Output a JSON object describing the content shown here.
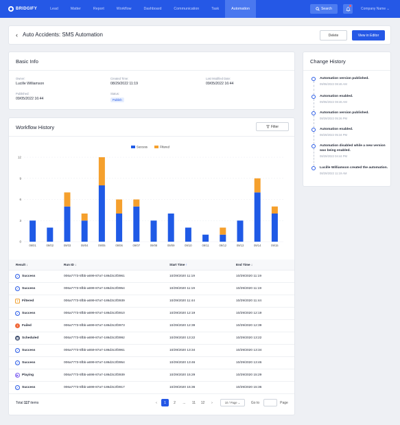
{
  "nav": {
    "logo": "BRIDGIFY",
    "items": [
      "Lead",
      "Matter",
      "Report",
      "Workflow",
      "Dashboard",
      "Communication",
      "Task",
      "Automation"
    ],
    "active": "Automation",
    "search_label": "Search",
    "company_label": "Company Name"
  },
  "header": {
    "title": "Auto Accidents: SMS Automation",
    "delete_label": "Delete",
    "edit_label": "View in Editor"
  },
  "basic_info": {
    "title": "Basic Info",
    "owner_label": "Owner:",
    "owner": "Lucille Williamson",
    "created_label": "Created Time:",
    "created": "08/29/2022 11:19",
    "modified_label": "Last Modified Date:",
    "modified": "09/05/2022 16:44",
    "published_label": "Published:",
    "published": "09/05/2022 16:44",
    "status_label": "Status:",
    "status": "Publish"
  },
  "workflow": {
    "title": "Workflow History",
    "filter_label": "Filter",
    "columns": [
      "Result",
      "Run ID",
      "Start Time",
      "End Time"
    ],
    "rows": [
      {
        "result": "Success",
        "run_id": "006a7773-5fbb-a699-87a7-186d3c3f3961",
        "start": "10/29/2020 11:19",
        "end": "10/29/2020 11:19"
      },
      {
        "result": "Success",
        "run_id": "006a7773-5fbb-a699-87a7-186d3c3f3954",
        "start": "10/29/2020 11:19",
        "end": "10/29/2020 11:19"
      },
      {
        "result": "Filtered",
        "run_id": "006a7773-5fbb-a699-87a7-186d3c3f3939",
        "start": "10/29/2020 11:44",
        "end": "10/29/2020 11:44"
      },
      {
        "result": "Success",
        "run_id": "006a7773-5fbb-a699-87a7-186d3c3f3910",
        "start": "10/29/2020 12:19",
        "end": "10/29/2020 12:19"
      },
      {
        "result": "Failed",
        "run_id": "006a7773-5fbb-a699-87a7-186d3c3f3973",
        "start": "10/29/2020 12:39",
        "end": "10/29/2020 12:39"
      },
      {
        "result": "Scheduled",
        "run_id": "006a7773-5fbb-a699-87a7-186d3c3f3992",
        "start": "10/29/2020 13:22",
        "end": "10/29/2020 13:22"
      },
      {
        "result": "Success",
        "run_id": "006a7773-5fbb-a659-87a7-186d3c3f3961",
        "start": "10/29/2020 13:34",
        "end": "10/29/2020 13:34"
      },
      {
        "result": "Success",
        "run_id": "006a7773-5fbb-a699-87a7-186d2c3f3954",
        "start": "10/29/2020 13:46",
        "end": "10/29/2020 13:46"
      },
      {
        "result": "Playing",
        "run_id": "006a7773-5fbb-a698-87a7-186d3c3f3939",
        "start": "10/29/2020 15:29",
        "end": "10/29/2020 15:29"
      },
      {
        "result": "Success",
        "run_id": "006a7773-5fbb-a699-87a7-186d3c3f3917",
        "start": "10/29/2020 15:36",
        "end": "10/29/2020 15:36"
      }
    ],
    "total_prefix": "Total",
    "total_count": "117",
    "total_suffix": "items",
    "pages": [
      "1",
      "2",
      "...",
      "11",
      "12"
    ],
    "current_page": "1",
    "page_size": "10 / Page",
    "goto_label": "Go to",
    "page_label": "Page"
  },
  "status_colors": {
    "Success": "#2558e6",
    "Filtered": "#f0a030",
    "Failed": "#f06a3c",
    "Scheduled": "#3a4a6b",
    "Playing": "#7b5cf0"
  },
  "status_icons": {
    "Success": "check-circle-icon",
    "Filtered": "filter-square-icon",
    "Failed": "error-circle-icon",
    "Scheduled": "calendar-icon",
    "Playing": "play-circle-icon"
  },
  "chart_data": {
    "type": "bar",
    "stacked": true,
    "categories": [
      "09/01",
      "09/02",
      "09/03",
      "09/04",
      "09/05",
      "09/06",
      "09/07",
      "09/08",
      "09/09",
      "09/10",
      "09/11",
      "09/12",
      "09/13",
      "09/14",
      "09/15"
    ],
    "series": [
      {
        "name": "Success",
        "color": "#1f5ae6",
        "values": [
          3,
          2,
          5,
          3,
          8,
          4,
          5,
          3,
          4,
          2,
          1,
          1,
          3,
          7,
          4
        ]
      },
      {
        "name": "Filtered",
        "color": "#f5a02d",
        "values": [
          0,
          0,
          2,
          1,
          4,
          2,
          1,
          0,
          0,
          0,
          0,
          1,
          0,
          2,
          1
        ]
      }
    ],
    "yticks": [
      0,
      3,
      6,
      9,
      12
    ],
    "ylim": [
      0,
      12
    ],
    "grid": true,
    "legend": "top-center"
  },
  "change_history": {
    "title": "Change History",
    "items": [
      {
        "text": "Automation version published.",
        "date": "09/06/2022 08:46 AM"
      },
      {
        "text": "Automation enabled.",
        "date": "09/06/2022 08:46 AM"
      },
      {
        "text": "Automation version published.",
        "date": "08/29/2022 05:26 PM"
      },
      {
        "text": "Automation enabled.",
        "date": "08/29/2022 05:34 PM"
      },
      {
        "text": "Automation disabled while a new version was being enabled.",
        "date": "08/29/2022 04:44 PM"
      },
      {
        "text": "Lucille Williamson created the automation.",
        "date": "08/29/2022 11:19 AM"
      }
    ]
  }
}
